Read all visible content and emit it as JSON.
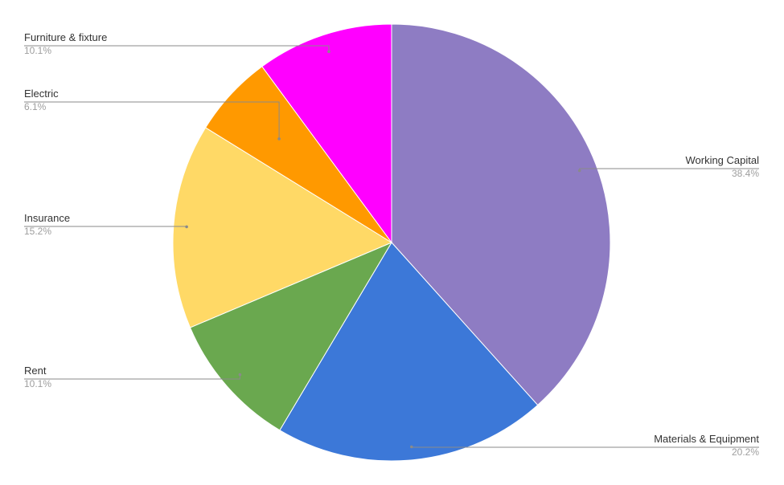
{
  "chart_data": {
    "type": "pie",
    "start_angle": "12 o'clock",
    "direction": "clockwise",
    "slices": [
      {
        "label": "Working Capital",
        "percent_label": "38.4%",
        "value": 38.4,
        "color": "#8e7cc3"
      },
      {
        "label": "Materials & Equipment",
        "percent_label": "20.2%",
        "value": 20.2,
        "color": "#3c78d8"
      },
      {
        "label": "Rent",
        "percent_label": "10.1%",
        "value": 10.1,
        "color": "#6aa84f"
      },
      {
        "label": "Insurance",
        "percent_label": "15.2%",
        "value": 15.2,
        "color": "#ffd966"
      },
      {
        "label": "Electric",
        "percent_label": "6.1%",
        "value": 6.1,
        "color": "#ff9900"
      },
      {
        "label": "Furniture & fixture",
        "percent_label": "10.1%",
        "value": 10.1,
        "color": "#ff00ff"
      }
    ]
  }
}
